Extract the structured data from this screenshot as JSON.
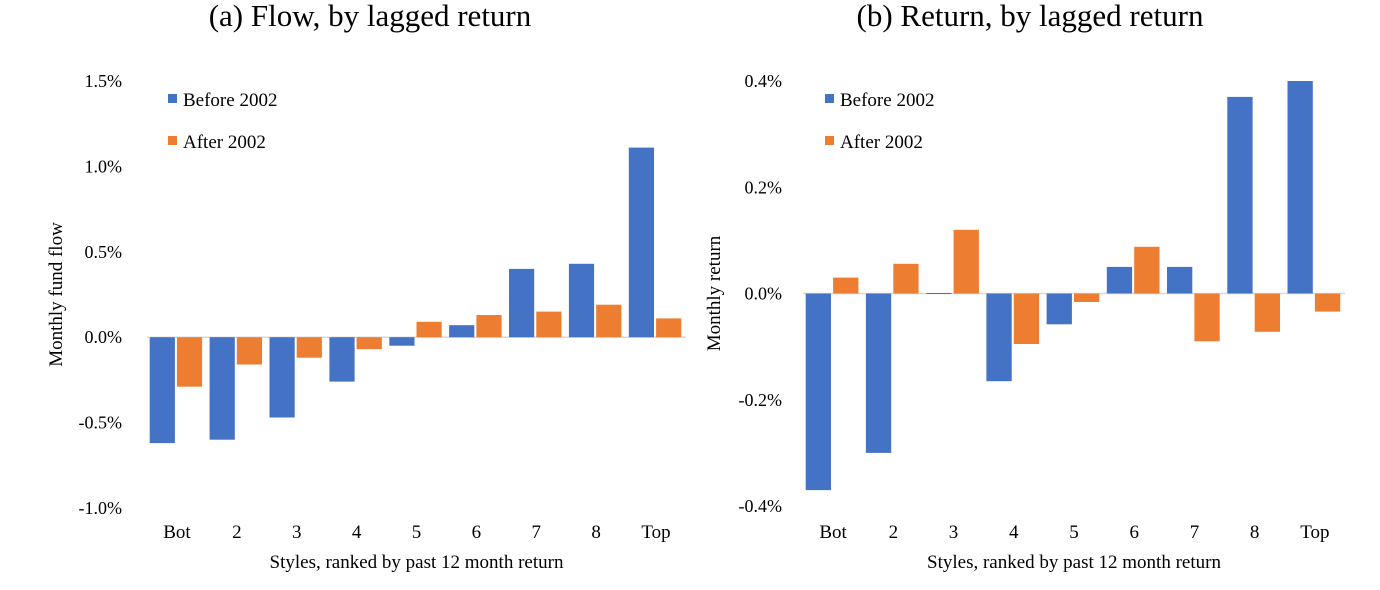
{
  "chart_data": [
    {
      "type": "bar",
      "title": "(a) Flow, by lagged return",
      "xlabel": "Styles, ranked by past 12 month return",
      "ylabel": "Monthly fund flow",
      "categories": [
        "Bot",
        "2",
        "3",
        "4",
        "5",
        "6",
        "7",
        "8",
        "Top"
      ],
      "series": [
        {
          "name": "Before 2002",
          "color": "#4472c4",
          "values": [
            -0.62,
            -0.6,
            -0.47,
            -0.26,
            -0.05,
            0.07,
            0.4,
            0.43,
            1.11
          ]
        },
        {
          "name": "After 2002",
          "color": "#ed7d31",
          "values": [
            -0.29,
            -0.16,
            -0.12,
            -0.07,
            0.09,
            0.13,
            0.15,
            0.19,
            0.11
          ]
        }
      ],
      "ylim": [
        -1.0,
        1.5
      ],
      "yticks": [
        "-1.0%",
        "-0.5%",
        "0.0%",
        "0.5%",
        "1.0%",
        "1.5%"
      ],
      "ytick_values": [
        -1.0,
        -0.5,
        0.0,
        0.5,
        1.0,
        1.5
      ],
      "legend_position": "top-left",
      "grid": false
    },
    {
      "type": "bar",
      "title": "(b) Return, by lagged return",
      "xlabel": "Styles, ranked by past 12 month return",
      "ylabel": "Monthly return",
      "categories": [
        "Bot",
        "2",
        "3",
        "4",
        "5",
        "6",
        "7",
        "8",
        "Top"
      ],
      "series": [
        {
          "name": "Before 2002",
          "color": "#4472c4",
          "values": [
            -0.37,
            -0.3,
            0.0,
            -0.165,
            -0.058,
            0.05,
            0.05,
            0.37,
            0.4
          ]
        },
        {
          "name": "After 2002",
          "color": "#ed7d31",
          "values": [
            0.03,
            0.056,
            0.12,
            -0.095,
            -0.016,
            0.088,
            -0.09,
            -0.072,
            -0.034
          ]
        }
      ],
      "ylim": [
        -0.4,
        0.4
      ],
      "yticks": [
        "-0.4%",
        "-0.2%",
        "0.0%",
        "0.2%",
        "0.4%"
      ],
      "ytick_values": [
        -0.4,
        -0.2,
        0.0,
        0.2,
        0.4
      ],
      "legend_position": "top-left",
      "grid": false
    }
  ]
}
